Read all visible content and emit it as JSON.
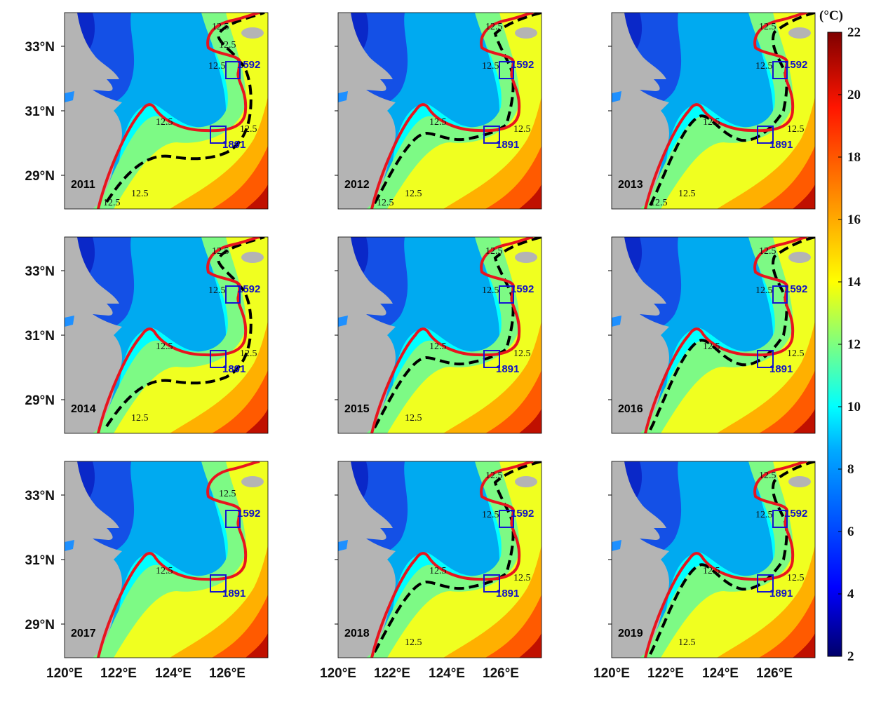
{
  "lat_labels": [
    "33°N",
    "31°N",
    "29°N"
  ],
  "lon_labels": [
    "120°E",
    "122°E",
    "124°E",
    "126°E"
  ],
  "isotherm_label": "12.5",
  "sites": [
    {
      "id": "1592"
    },
    {
      "id": "1891"
    }
  ],
  "colorbar": {
    "unit": "(°C)",
    "ticks": [
      "2",
      "4",
      "6",
      "8",
      "10",
      "12",
      "14",
      "16",
      "18",
      "20",
      "22"
    ],
    "min": 2,
    "max": 22
  },
  "colors": {
    "land": "#b4b4b4",
    "red_isotherm": "#e8141e",
    "black_isotherm": "#000000",
    "site_box": "#1414d2"
  },
  "panels": [
    {
      "year": "2011",
      "red_labels": 2,
      "black_labels": 5
    },
    {
      "year": "2012",
      "red_labels": 1,
      "black_labels": 5
    },
    {
      "year": "2013",
      "red_labels": 1,
      "black_labels": 5
    },
    {
      "year": "2014",
      "red_labels": 1,
      "black_labels": 4
    },
    {
      "year": "2015",
      "red_labels": 1,
      "black_labels": 4
    },
    {
      "year": "2016",
      "red_labels": 1,
      "black_labels": 3
    },
    {
      "year": "2017",
      "red_labels": 2,
      "black_labels": 0
    },
    {
      "year": "2018",
      "red_labels": 1,
      "black_labels": 4
    },
    {
      "year": "2019",
      "red_labels": 1,
      "black_labels": 4
    }
  ]
}
